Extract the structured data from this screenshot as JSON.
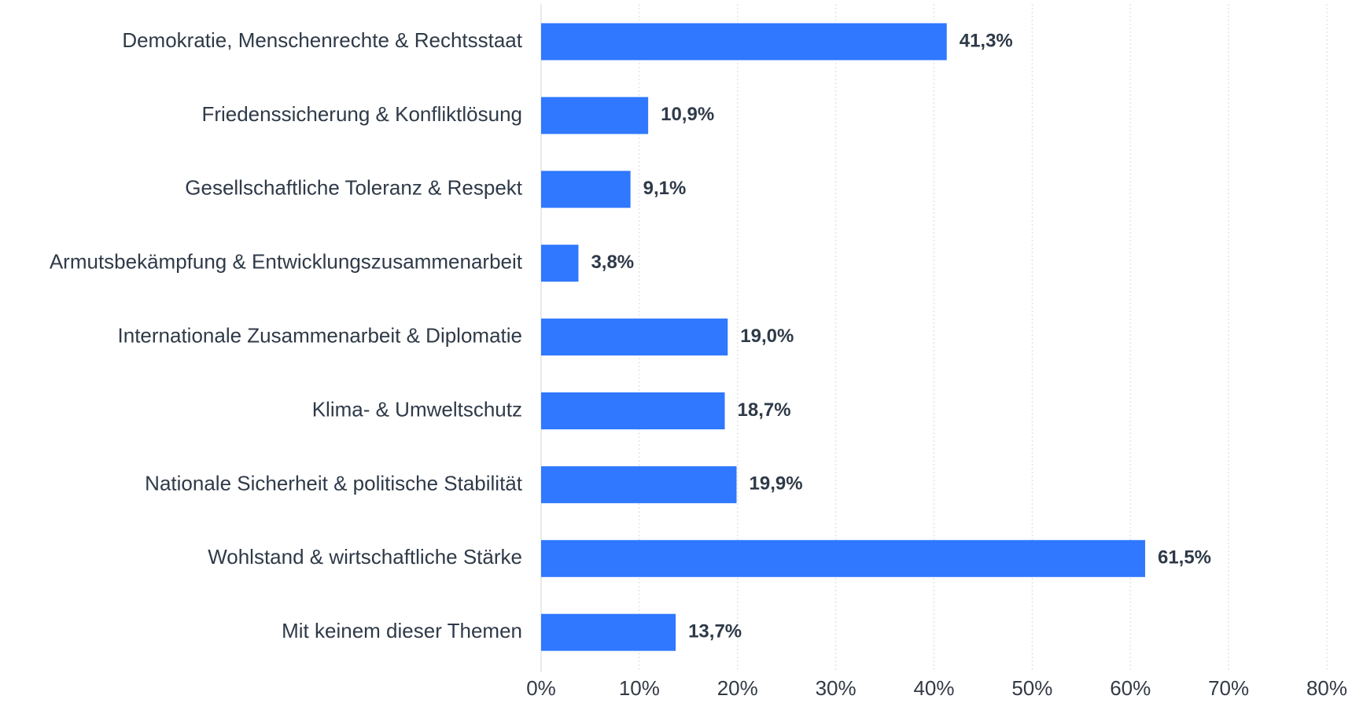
{
  "chart_data": {
    "type": "barh",
    "categories": [
      "Demokratie, Menschenrechte & Rechtsstaat",
      "Friedenssicherung & Konfliktlösung",
      "Gesellschaftliche Toleranz & Respekt",
      "Armutsbekämpfung & Entwicklungszusammenarbeit",
      "Internationale Zusammenarbeit & Diplomatie",
      "Klima- & Umweltschutz",
      "Nationale Sicherheit & politische Stabilität",
      "Wohlstand & wirtschaftliche Stärke",
      "Mit keinem dieser Themen"
    ],
    "values": [
      41.3,
      10.9,
      9.1,
      3.8,
      19.0,
      18.7,
      19.9,
      61.5,
      13.7
    ],
    "value_labels": [
      "41,3%",
      "10,9%",
      "9,1%",
      "3,8%",
      "19,0%",
      "18,7%",
      "19,9%",
      "61,5%",
      "13,7%"
    ],
    "color": "#2f78ff",
    "xlim": [
      0,
      80
    ],
    "xticks": [
      {
        "value": 0,
        "label": "0%"
      },
      {
        "value": 10,
        "label": "10%"
      },
      {
        "value": 20,
        "label": "20%"
      },
      {
        "value": 30,
        "label": "30%"
      },
      {
        "value": 40,
        "label": "40%"
      },
      {
        "value": 50,
        "label": "50%"
      },
      {
        "value": 60,
        "label": "60%"
      },
      {
        "value": 70,
        "label": "70%"
      },
      {
        "value": 80,
        "label": "80%"
      }
    ],
    "grid": true
  }
}
